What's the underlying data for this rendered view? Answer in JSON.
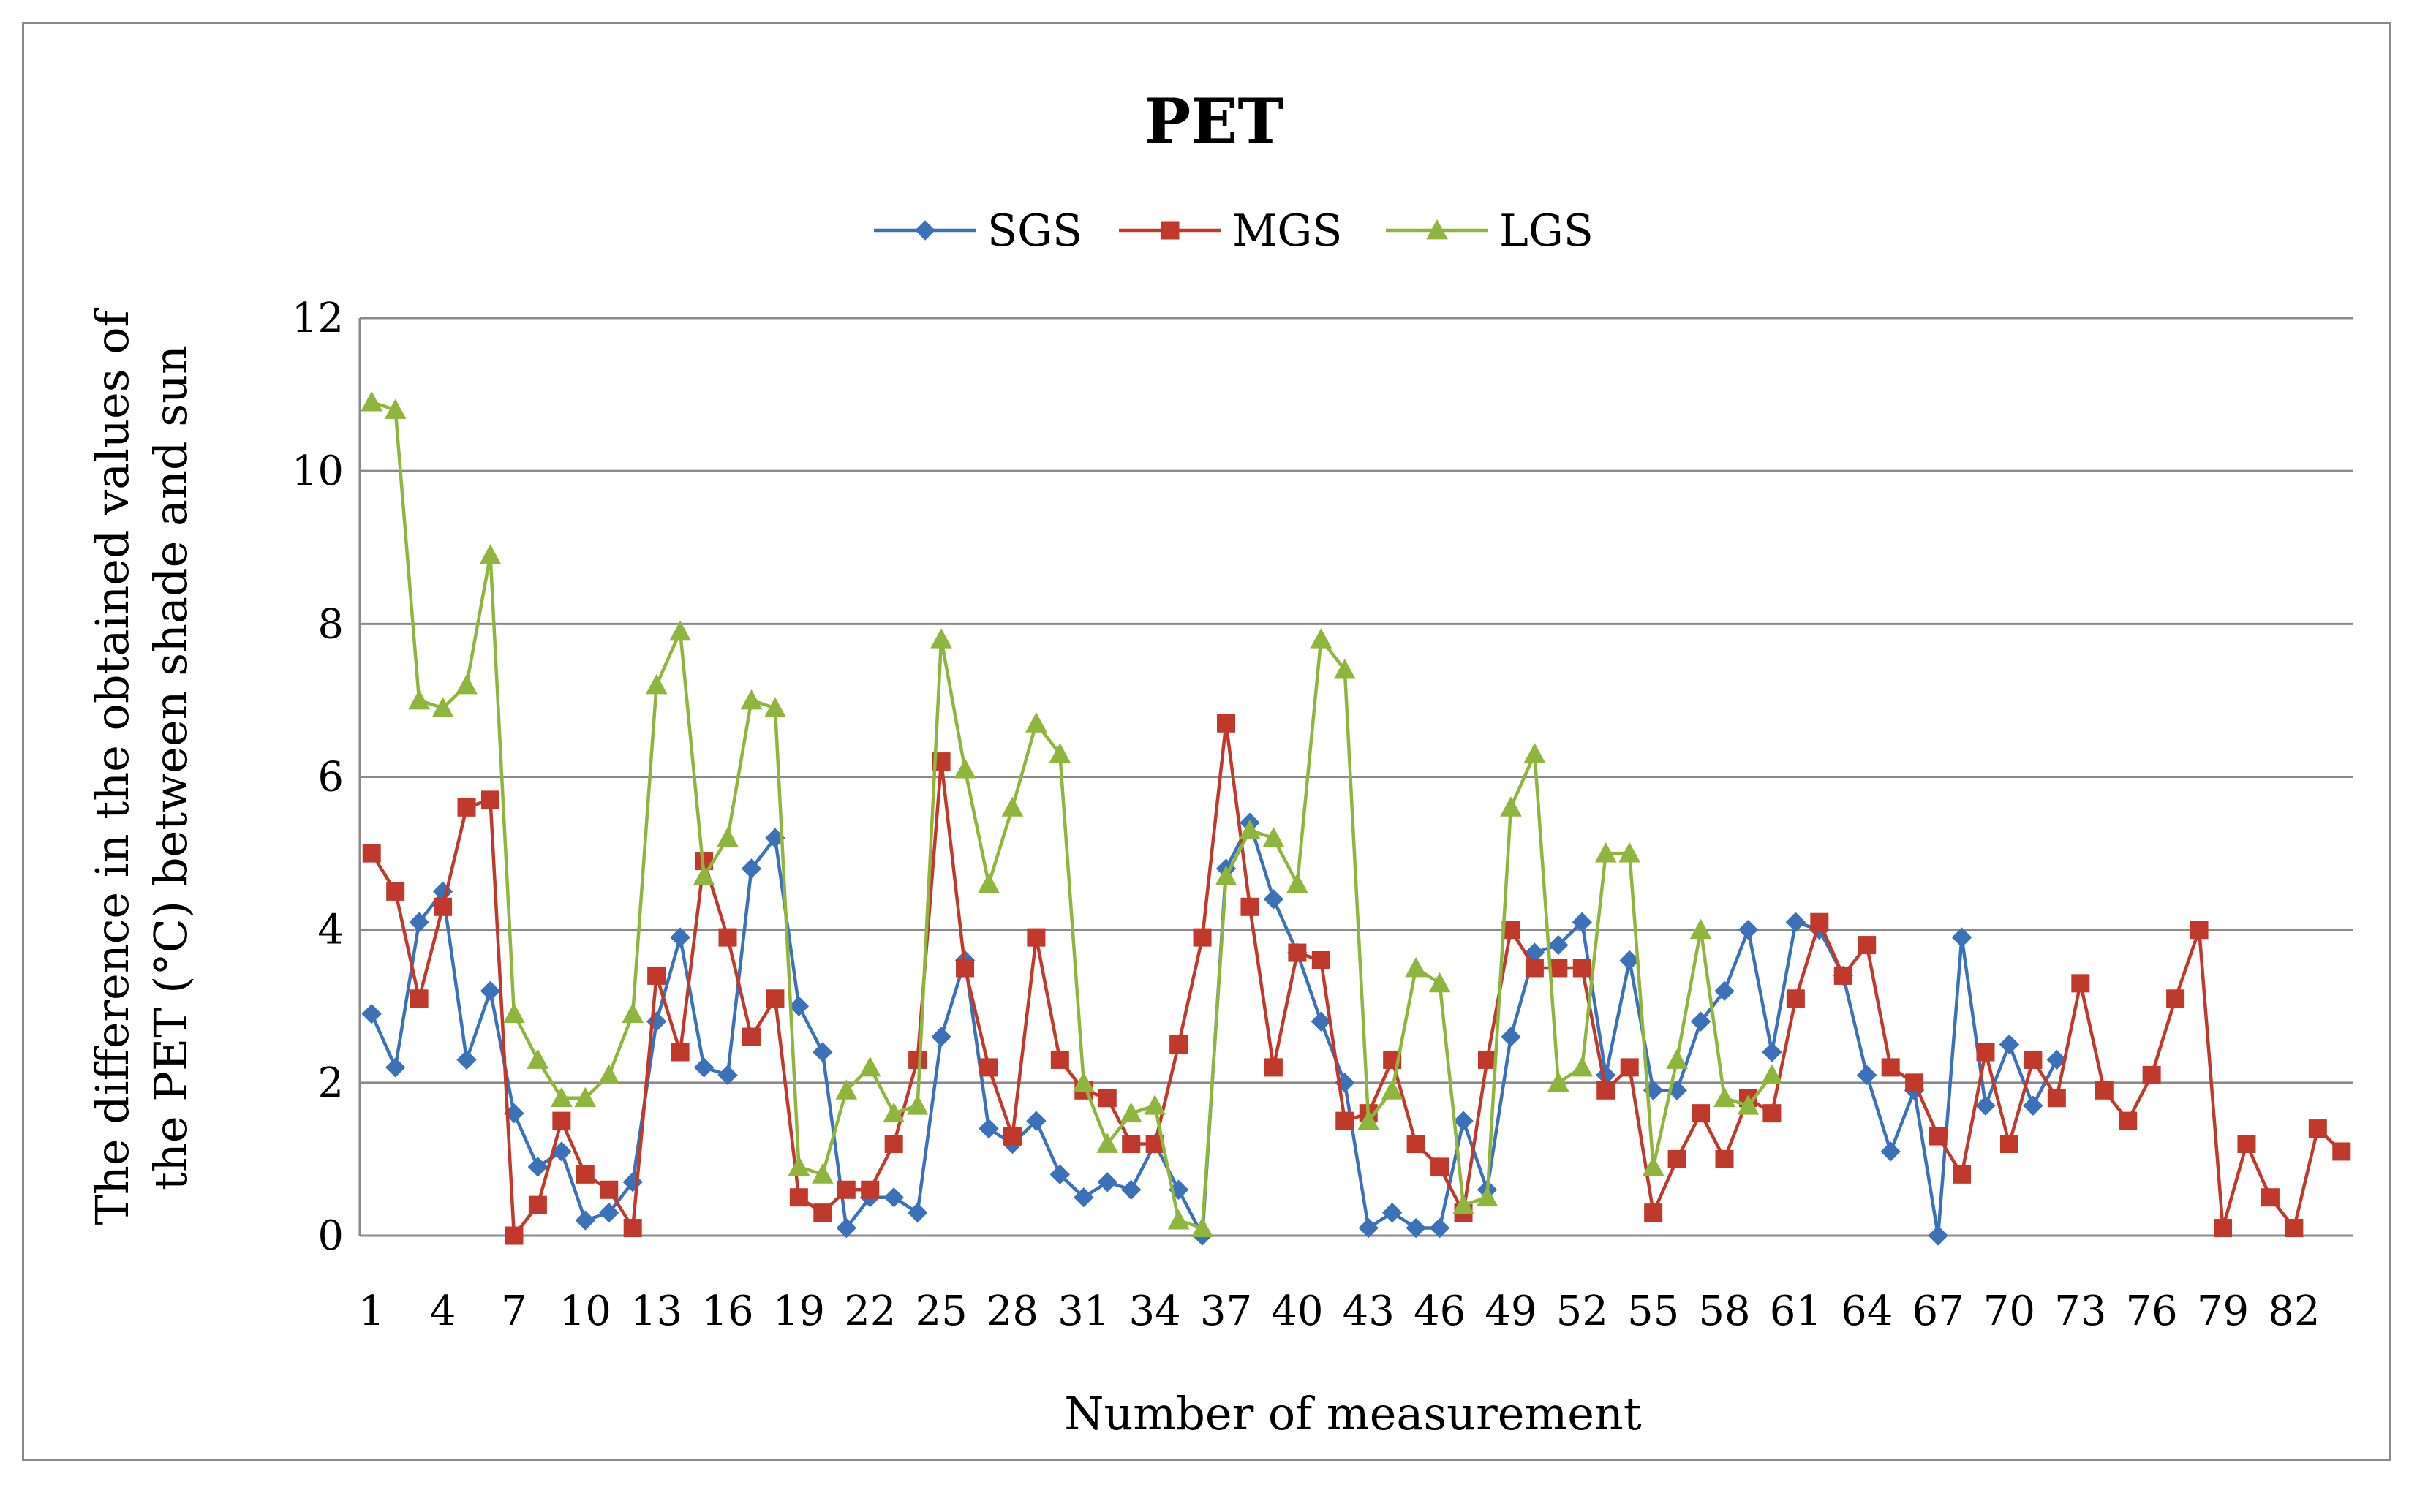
{
  "chart_data": {
    "type": "line",
    "title": "PET",
    "xlabel": "Number of measurement",
    "ylabel_lines": [
      "The difference in the obtained values of",
      "the PET (°C) between shade and sun"
    ],
    "ylim": [
      0,
      12
    ],
    "yticks": [
      0,
      2,
      4,
      6,
      8,
      10,
      12
    ],
    "x_tick_labels": [
      "1",
      "4",
      "7",
      "10",
      "13",
      "16",
      "19",
      "22",
      "25",
      "28",
      "31",
      "34",
      "37",
      "40",
      "43",
      "46",
      "49",
      "52",
      "55",
      "58",
      "61",
      "64",
      "67",
      "70",
      "73",
      "76",
      "79",
      "82"
    ],
    "x_count": 84,
    "grid": true,
    "legend_position": "top-center",
    "series": [
      {
        "name": "SGS",
        "color": "#3b71b8",
        "marker": "diamond",
        "values": [
          2.9,
          2.2,
          4.1,
          4.5,
          2.3,
          3.2,
          1.6,
          0.9,
          1.1,
          0.2,
          0.3,
          0.7,
          2.8,
          3.9,
          2.2,
          2.1,
          4.8,
          5.2,
          3.0,
          2.4,
          0.1,
          0.5,
          0.5,
          0.3,
          2.6,
          3.6,
          1.4,
          1.2,
          1.5,
          0.8,
          0.5,
          0.7,
          0.6,
          1.2,
          0.6,
          0.0,
          4.8,
          5.4,
          4.4,
          3.7,
          2.8,
          2.0,
          0.1,
          0.3,
          0.1,
          0.1,
          1.5,
          0.6,
          2.6,
          3.7,
          3.8,
          4.1,
          2.1,
          3.6,
          1.9,
          1.9,
          2.8,
          3.2,
          4.0,
          2.4,
          4.1,
          4.0,
          3.4,
          2.1,
          1.1,
          1.9,
          0.0,
          3.9,
          1.7,
          2.5,
          1.7,
          2.3
        ]
      },
      {
        "name": "MGS",
        "color": "#c0392b",
        "marker": "square",
        "values": [
          5.0,
          4.5,
          3.1,
          4.3,
          5.6,
          5.7,
          0.0,
          0.4,
          1.5,
          0.8,
          0.6,
          0.1,
          3.4,
          2.4,
          4.9,
          3.9,
          2.6,
          3.1,
          0.5,
          0.3,
          0.6,
          0.6,
          1.2,
          2.3,
          6.2,
          3.5,
          2.2,
          1.3,
          3.9,
          2.3,
          1.9,
          1.8,
          1.2,
          1.2,
          2.5,
          3.9,
          6.7,
          4.3,
          2.2,
          3.7,
          3.6,
          1.5,
          1.6,
          2.3,
          1.2,
          0.9,
          0.3,
          2.3,
          4.0,
          3.5,
          3.5,
          3.5,
          1.9,
          2.2,
          0.3,
          1.0,
          1.6,
          1.0,
          1.8,
          1.6,
          3.1,
          4.1,
          3.4,
          3.8,
          2.2,
          2.0,
          1.3,
          0.8,
          2.4,
          1.2,
          2.3,
          1.8,
          3.3,
          1.9,
          1.5,
          2.1,
          3.1,
          4.0,
          0.1,
          1.2,
          0.5,
          0.1,
          1.4,
          1.1
        ]
      },
      {
        "name": "LGS",
        "color": "#8fb63c",
        "marker": "triangle",
        "values": [
          10.9,
          10.8,
          7.0,
          6.9,
          7.2,
          8.9,
          2.9,
          2.3,
          1.8,
          1.8,
          2.1,
          2.9,
          7.2,
          7.9,
          4.7,
          5.2,
          7.0,
          6.9,
          0.9,
          0.8,
          1.9,
          2.2,
          1.6,
          1.7,
          7.8,
          6.1,
          4.6,
          5.6,
          6.7,
          6.3,
          2.0,
          1.2,
          1.6,
          1.7,
          0.2,
          0.1,
          4.7,
          5.3,
          5.2,
          4.6,
          7.8,
          7.4,
          1.5,
          1.9,
          3.5,
          3.3,
          0.4,
          0.5,
          5.6,
          6.3,
          2.0,
          2.2,
          5.0,
          5.0,
          0.9,
          2.3,
          4.0,
          1.8,
          1.7,
          2.1
        ]
      }
    ]
  }
}
